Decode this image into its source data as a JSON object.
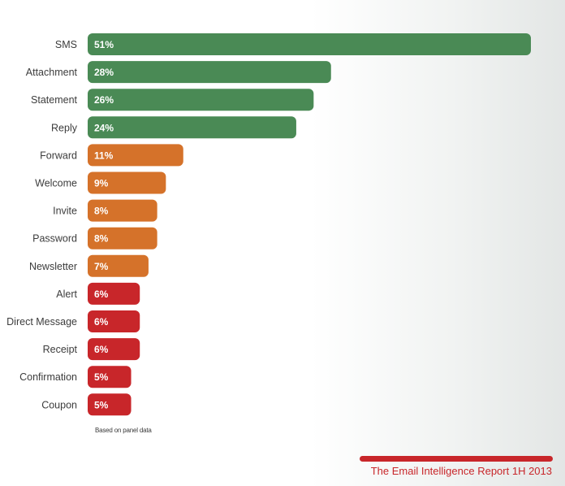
{
  "chart_data": {
    "type": "bar",
    "orientation": "horizontal",
    "categories": [
      "SMS",
      "Attachment",
      "Statement",
      "Reply",
      "Forward",
      "Welcome",
      "Invite",
      "Password",
      "Newsletter",
      "Alert",
      "Direct Message",
      "Receipt",
      "Confirmation",
      "Coupon"
    ],
    "values": [
      51,
      28,
      26,
      24,
      11,
      9,
      8,
      8,
      7,
      6,
      6,
      6,
      5,
      5
    ],
    "value_labels": [
      "51%",
      "28%",
      "26%",
      "24%",
      "11%",
      "9%",
      "8%",
      "8%",
      "7%",
      "6%",
      "6%",
      "6%",
      "5%",
      "5%"
    ],
    "bar_colors": [
      "#4a8a55",
      "#4a8a55",
      "#4a8a55",
      "#4a8a55",
      "#d5722a",
      "#d5722a",
      "#d5722a",
      "#d5722a",
      "#d5722a",
      "#c8262a",
      "#c8262a",
      "#c8262a",
      "#c8262a",
      "#c8262a"
    ],
    "xlim": [
      0,
      51
    ],
    "title": "",
    "xlabel": "",
    "ylabel": "",
    "grid": false,
    "legend": "none",
    "annotation": "Based on panel data"
  },
  "footer": {
    "source": "The Email Intelligence Report 1H 2013",
    "source_color": "#c8262a"
  }
}
